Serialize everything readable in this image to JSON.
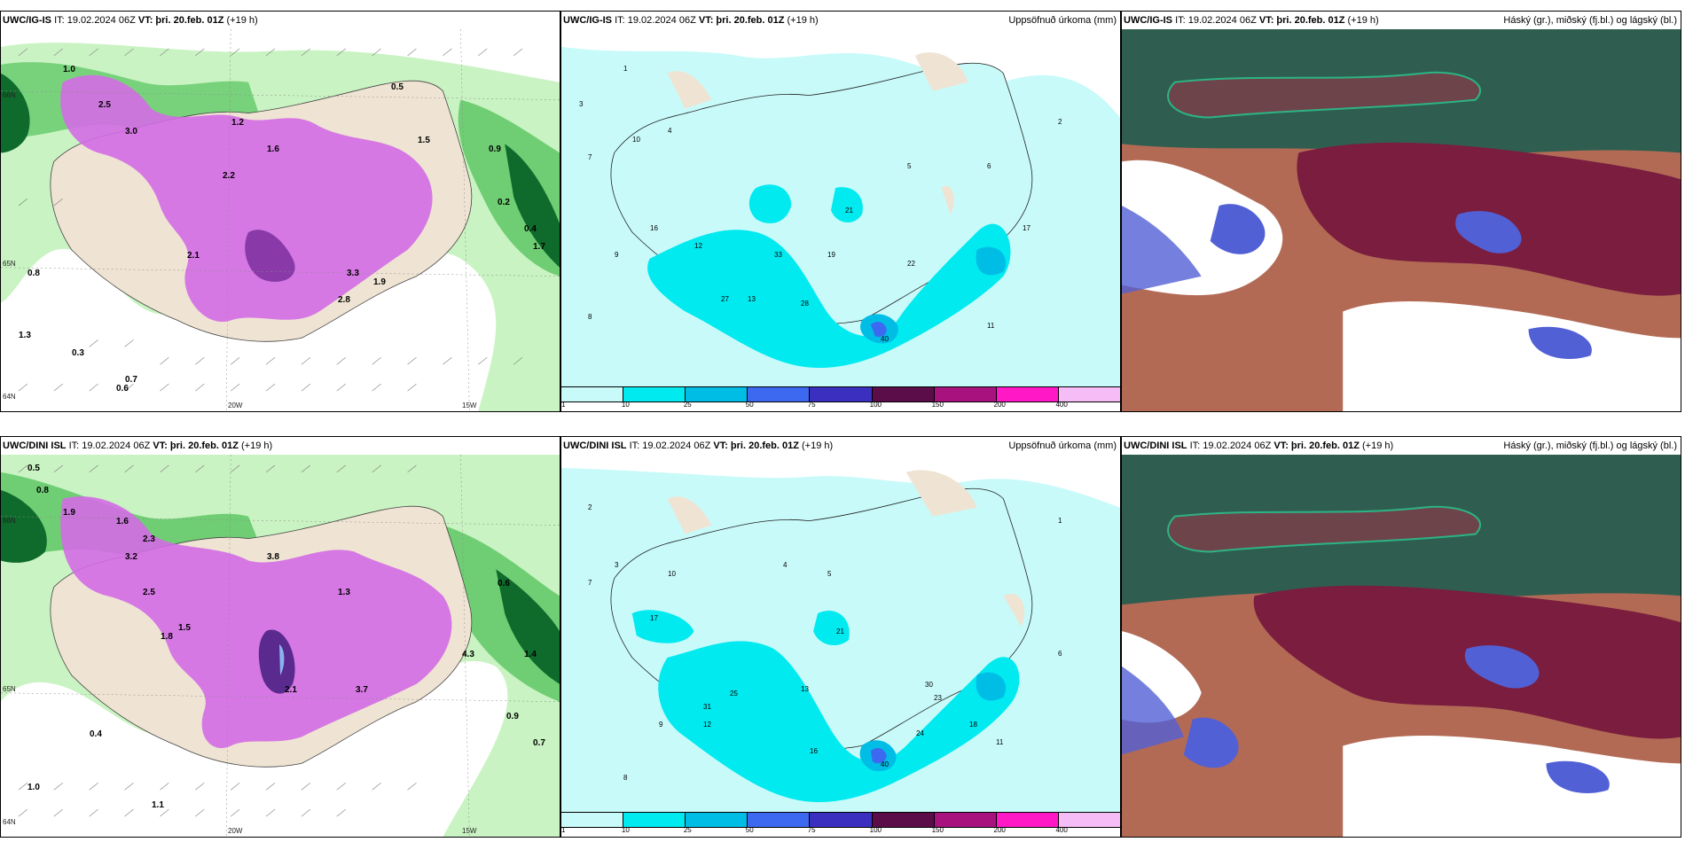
{
  "rows": [
    {
      "id": "top",
      "panels": {
        "wind": {
          "title_model": "UWC/IG-IS",
          "title_it": "IT: 19.02.2024 06Z",
          "title_vt": "VT: þri. 20.feb. 01Z",
          "title_lead": "(+19 h)",
          "values": [
            "1.0",
            "2.5",
            "3.0",
            "2.2",
            "1.6",
            "1.2",
            "0.9",
            "0.5",
            "0.7",
            "0.8",
            "1.5",
            "1.9",
            "2.1",
            "3.3",
            "1.3",
            "0.3",
            "0.6",
            "0.2",
            "0.4",
            "1.7",
            "2.8"
          ],
          "axis_labels": [
            "20W",
            "15W",
            "66N",
            "65N",
            "64N"
          ]
        },
        "precip": {
          "title_model": "UWC/IG-IS",
          "title_it": "IT: 19.02.2024 06Z",
          "title_vt": "VT: þri. 20.feb. 01Z",
          "title_lead": "(+19 h)",
          "title_right": "Uppsöfnuð úrkoma (mm)",
          "values": [
            "1",
            "3",
            "7",
            "10",
            "16",
            "27",
            "28",
            "33",
            "40",
            "22",
            "19",
            "13",
            "12",
            "11",
            "8",
            "9",
            "4",
            "5",
            "6",
            "2",
            "17",
            "21"
          ],
          "colorbar_ticks": [
            "1",
            "10",
            "25",
            "50",
            "75",
            "100",
            "150",
            "200",
            "400"
          ]
        },
        "cloud": {
          "title_model": "UWC/IG-IS",
          "title_it": "IT: 19.02.2024 06Z",
          "title_vt": "VT: þri. 20.feb. 01Z",
          "title_lead": "(+19 h)",
          "title_right": "Háský (gr.), miðský (fj.bl.) og lágský (bl.)"
        }
      }
    },
    {
      "id": "bottom",
      "panels": {
        "wind": {
          "title_model": "UWC/DINI ISL",
          "title_it": "IT: 19.02.2024 06Z",
          "title_vt": "VT: þri. 20.feb. 01Z",
          "title_lead": "(+19 h)",
          "values": [
            "0.5",
            "0.8",
            "1.9",
            "1.6",
            "2.3",
            "3.2",
            "1.5",
            "2.5",
            "3.8",
            "4.3",
            "1.3",
            "0.9",
            "0.7",
            "1.1",
            "0.4",
            "1.0",
            "2.1",
            "3.7",
            "0.6",
            "1.4",
            "1.8"
          ],
          "axis_labels": [
            "20W",
            "15W",
            "66N",
            "65N",
            "64N"
          ]
        },
        "precip": {
          "title_model": "UWC/DINI ISL",
          "title_it": "IT: 19.02.2024 06Z",
          "title_vt": "VT: þri. 20.feb. 01Z",
          "title_lead": "(+19 h)",
          "title_right": "Uppsöfnuð úrkoma (mm)",
          "values": [
            "2",
            "3",
            "7",
            "10",
            "17",
            "16",
            "25",
            "31",
            "40",
            "24",
            "23",
            "30",
            "18",
            "13",
            "12",
            "11",
            "8",
            "9",
            "4",
            "5",
            "6",
            "1",
            "21"
          ],
          "colorbar_ticks": [
            "1",
            "10",
            "25",
            "50",
            "75",
            "100",
            "150",
            "200",
            "400"
          ]
        },
        "cloud": {
          "title_model": "UWC/DINI ISL",
          "title_it": "IT: 19.02.2024 06Z",
          "title_vt": "VT: þri. 20.feb. 01Z",
          "title_lead": "(+19 h)",
          "title_right": "Háský (gr.), miðský (fj.bl.) og lágský (bl.)"
        }
      }
    }
  ],
  "colors": {
    "land": "#efe4d3",
    "precip_bands": [
      "#c8fafa",
      "#00eaf0",
      "#00bde6",
      "#3d69f0",
      "#3b2fbf",
      "#5a0d49",
      "#a8127f",
      "#ff19c6",
      "#f5bcf5"
    ],
    "wind_green_light": "#c9f3c2",
    "wind_green_mid": "#6fce74",
    "wind_green_dark": "#0f6b2c",
    "wind_magenta": "#d36be6",
    "cloud_dark_teal": "#2f5e50",
    "cloud_maroon": "#7a1d3f",
    "cloud_blue": "#5260d6",
    "cloud_brown": "#b26a55"
  }
}
